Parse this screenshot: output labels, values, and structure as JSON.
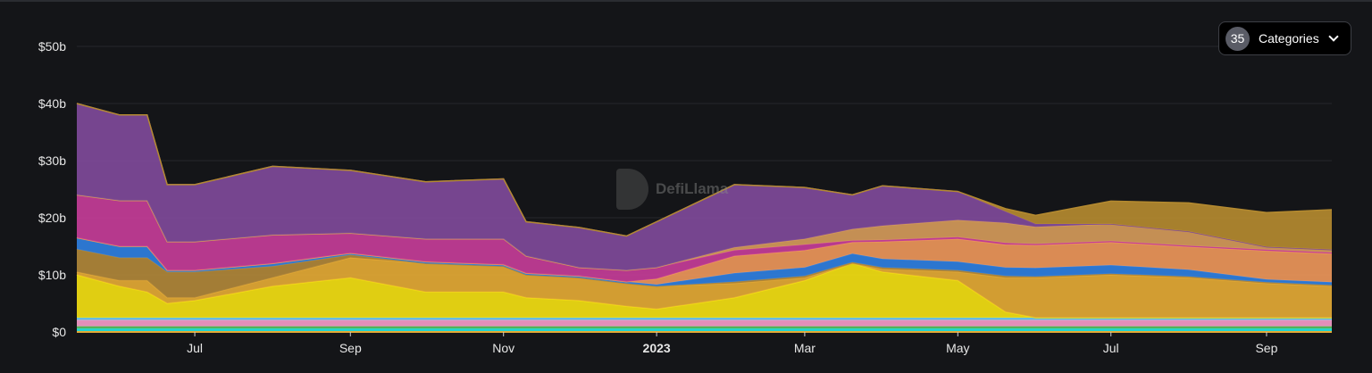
{
  "controls": {
    "categories_count": "35",
    "categories_label": "Categories"
  },
  "watermark": "DefiLlama",
  "chart_data": {
    "type": "area",
    "stacked": true,
    "title": "",
    "xlabel": "",
    "ylabel": "",
    "ylim": [
      0,
      50
    ],
    "xlim": [
      "2022-05-15",
      "2023-09-27"
    ],
    "grid": true,
    "y_ticks": [
      {
        "v": 0,
        "label": "$0"
      },
      {
        "v": 10,
        "label": "$10b"
      },
      {
        "v": 20,
        "label": "$20b"
      },
      {
        "v": 30,
        "label": "$30b"
      },
      {
        "v": 40,
        "label": "$40b"
      },
      {
        "v": 50,
        "label": "$50b"
      }
    ],
    "x_ticks": [
      {
        "date": "2022-07-01",
        "label": "Jul",
        "bold": false
      },
      {
        "date": "2022-09-01",
        "label": "Sep",
        "bold": false
      },
      {
        "date": "2022-11-01",
        "label": "Nov",
        "bold": false
      },
      {
        "date": "2023-01-01",
        "label": "2023",
        "bold": true
      },
      {
        "date": "2023-03-01",
        "label": "Mar",
        "bold": false
      },
      {
        "date": "2023-05-01",
        "label": "May",
        "bold": false
      },
      {
        "date": "2023-07-01",
        "label": "Jul",
        "bold": false
      },
      {
        "date": "2023-09-01",
        "label": "Sep",
        "bold": false
      }
    ],
    "x": [
      "2022-05-15",
      "2022-06-01",
      "2022-06-12",
      "2022-06-20",
      "2022-07-01",
      "2022-08-01",
      "2022-09-01",
      "2022-10-01",
      "2022-11-01",
      "2022-11-10",
      "2022-12-01",
      "2022-12-20",
      "2023-01-01",
      "2023-02-01",
      "2023-03-01",
      "2023-03-20",
      "2023-04-01",
      "2023-05-01",
      "2023-05-20",
      "2023-06-01",
      "2023-07-01",
      "2023-08-01",
      "2023-09-01",
      "2023-09-27"
    ],
    "series": [
      {
        "color": "#22e3e0",
        "values": [
          0.6,
          0.6,
          0.6,
          0.6,
          0.6,
          0.6,
          0.6,
          0.6,
          0.6,
          0.6,
          0.6,
          0.6,
          0.6,
          0.6,
          0.6,
          0.6,
          0.6,
          0.6,
          0.6,
          0.6,
          0.6,
          0.6,
          0.6,
          0.6
        ]
      },
      {
        "color": "#57b85a",
        "values": [
          0.4,
          0.4,
          0.4,
          0.4,
          0.4,
          0.4,
          0.4,
          0.4,
          0.4,
          0.4,
          0.4,
          0.4,
          0.4,
          0.4,
          0.4,
          0.4,
          0.4,
          0.4,
          0.4,
          0.4,
          0.4,
          0.4,
          0.4,
          0.4
        ]
      },
      {
        "color": "#f49ac8",
        "values": [
          1.1,
          1.1,
          1.1,
          1.1,
          1.1,
          1.1,
          1.1,
          1.1,
          1.1,
          1.1,
          1.1,
          1.1,
          1.1,
          1.1,
          1.1,
          1.1,
          1.1,
          1.1,
          1.1,
          1.1,
          1.1,
          1.1,
          1.1,
          1.1
        ]
      },
      {
        "color": "#6ac4e6",
        "values": [
          0.4,
          0.4,
          0.4,
          0.4,
          0.4,
          0.4,
          0.4,
          0.4,
          0.4,
          0.4,
          0.4,
          0.4,
          0.4,
          0.4,
          0.4,
          0.4,
          0.4,
          0.4,
          0.4,
          0.4,
          0.4,
          0.4,
          0.4,
          0.4
        ]
      },
      {
        "color": "#f2de12",
        "values": [
          7.5,
          5.5,
          4.5,
          2.5,
          3,
          5.5,
          7,
          4.5,
          4.5,
          3.5,
          3,
          2,
          1.5,
          3.5,
          6.5,
          9.5,
          8,
          6.5,
          1,
          0,
          0,
          0,
          0,
          0
        ]
      },
      {
        "color": "#e3a935",
        "values": [
          0.5,
          1,
          2,
          1,
          0.5,
          1.5,
          3.5,
          5,
          4.5,
          4,
          4,
          4,
          4,
          2.5,
          0.5,
          0,
          0.5,
          1.5,
          6,
          7,
          7.5,
          7,
          6,
          5.5
        ]
      },
      {
        "color": "#b0873a",
        "values": [
          4,
          4,
          4,
          4.5,
          4.5,
          2,
          0.5,
          0,
          0,
          0,
          0,
          0,
          0,
          0.3,
          0.3,
          0.2,
          0.3,
          0.3,
          0.3,
          0.2,
          0.2,
          0.2,
          0.2,
          0.2
        ]
      },
      {
        "color": "#2f7fe0",
        "values": [
          2,
          2,
          2,
          0.3,
          0.3,
          0.5,
          0.3,
          0.3,
          0.3,
          0.3,
          0.3,
          0.3,
          0.3,
          1.5,
          1.5,
          1.5,
          1.5,
          1.5,
          1.5,
          1.5,
          1.5,
          1.2,
          0.5,
          0.5
        ]
      },
      {
        "color": "#ec965a",
        "values": [
          0,
          0,
          0,
          0,
          0,
          0,
          0,
          0,
          0,
          0,
          0,
          0,
          1,
          3,
          3,
          2,
          3,
          4,
          4,
          4,
          4,
          4,
          5,
          5
        ]
      },
      {
        "color": "#c43d98",
        "values": [
          7.5,
          8,
          8,
          5,
          5,
          5,
          3.5,
          4,
          4.5,
          3,
          1.5,
          2,
          2,
          1,
          1,
          0.3,
          0.3,
          0.3,
          0.3,
          0.2,
          0.2,
          0.2,
          0.2,
          0.2
        ]
      },
      {
        "color": "#d49a5a",
        "values": [
          0,
          0,
          0,
          0,
          0,
          0,
          0,
          0,
          0,
          0,
          0,
          0,
          0,
          0.5,
          1,
          2,
          2.5,
          3,
          3.5,
          3,
          3,
          2.5,
          0.5,
          0.5
        ]
      },
      {
        "color": "#7f4a9a",
        "values": [
          16,
          15,
          15,
          10,
          10,
          12,
          11,
          10,
          10.5,
          6,
          7,
          6,
          8,
          11,
          9,
          6,
          7,
          5,
          2,
          0.5,
          0,
          0,
          0,
          0
        ]
      },
      {
        "color": "#b48a30",
        "values": [
          0,
          0,
          0,
          0,
          0,
          0,
          0,
          0,
          0,
          0,
          0,
          0,
          0,
          0,
          0,
          0,
          0,
          0,
          0.5,
          1.5,
          4,
          5,
          6,
          7
        ]
      }
    ]
  }
}
